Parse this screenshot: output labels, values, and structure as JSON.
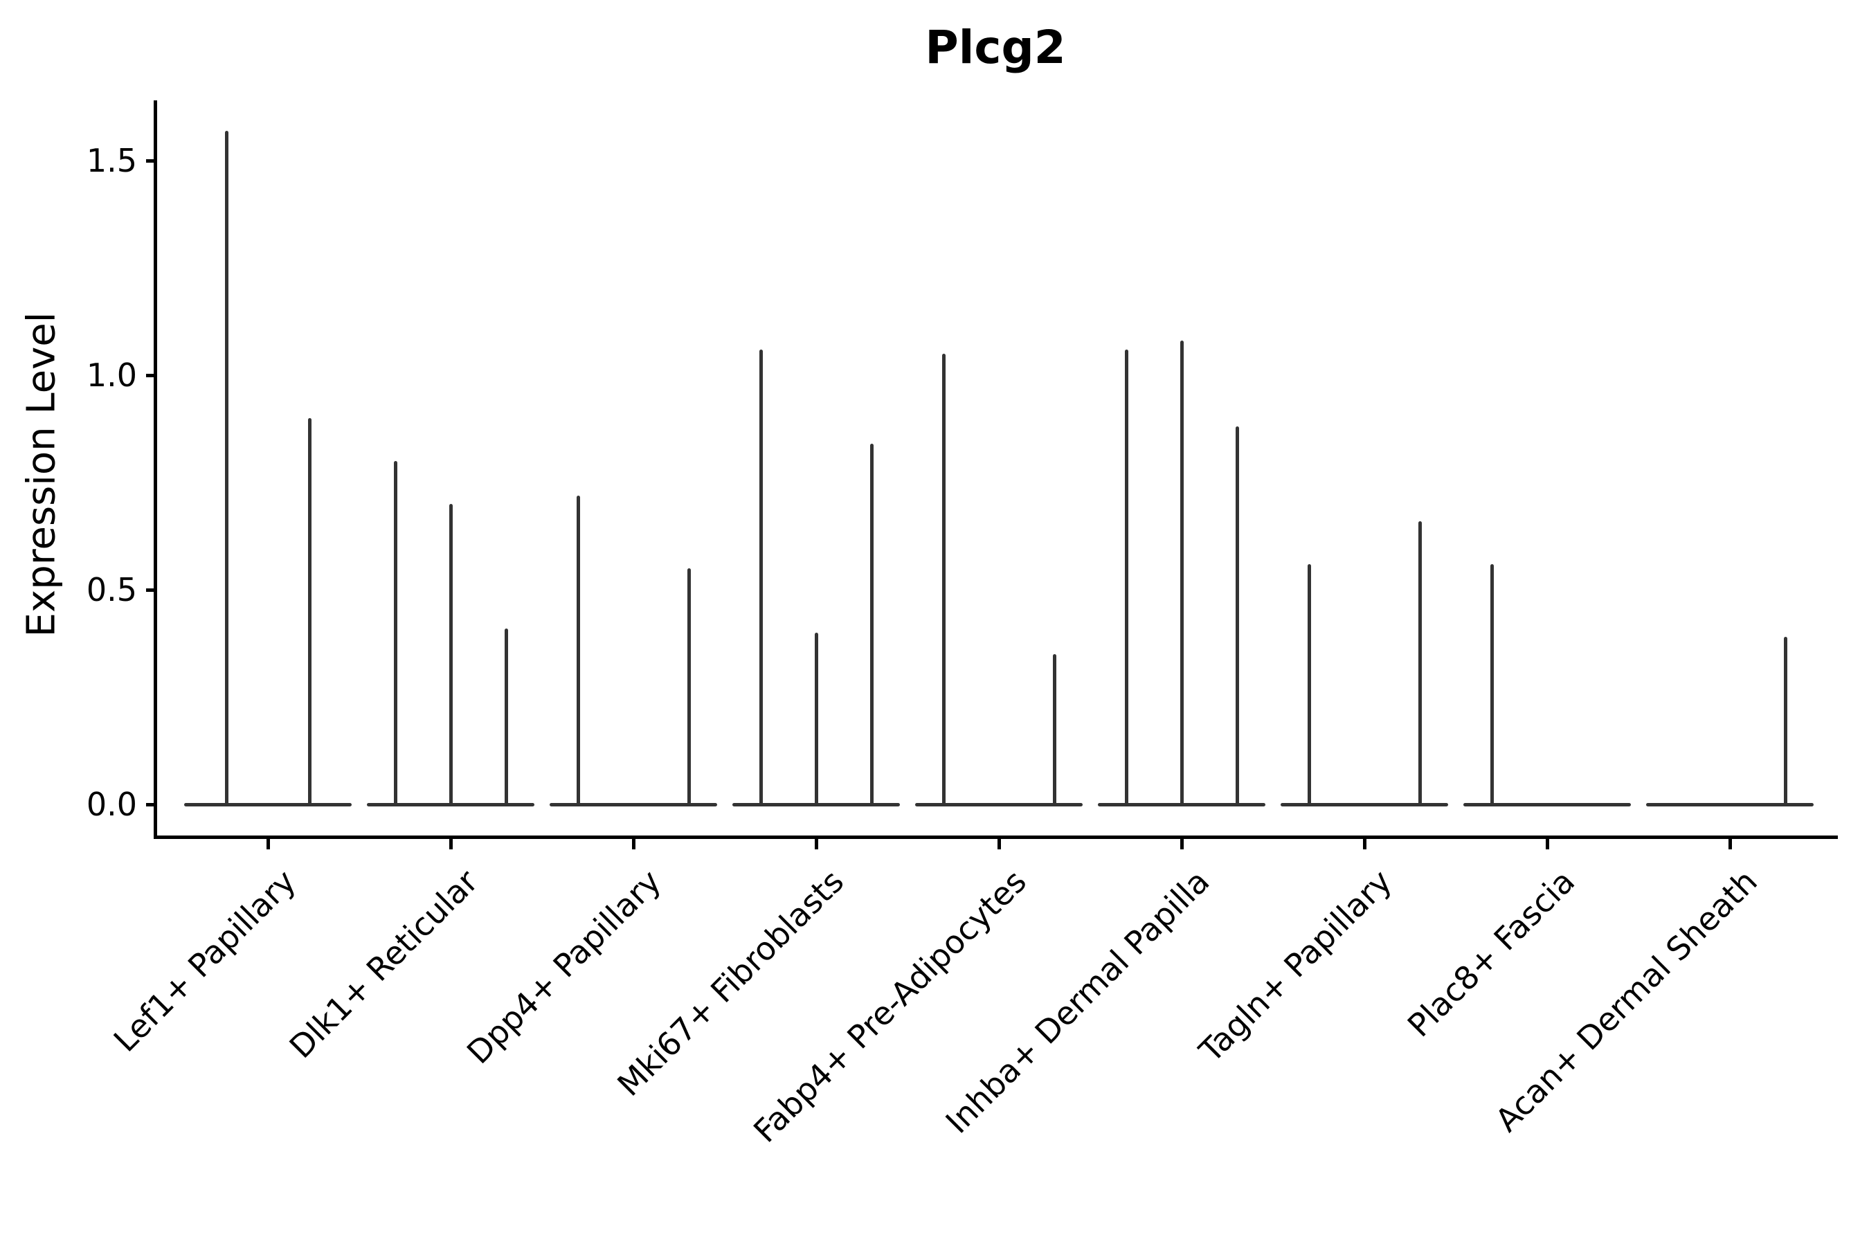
{
  "chart_data": {
    "type": "violin",
    "title": "Plcg2",
    "ylabel": "Expression Level",
    "xlabel": "",
    "grid": false,
    "legend": false,
    "yticks": [
      0.0,
      0.5,
      1.0,
      1.5
    ],
    "ytick_labels": [
      "0.0",
      "0.5",
      "1.0",
      "1.5"
    ],
    "ylim": [
      -0.08,
      1.65
    ],
    "description": "Single-cell expression violin plot; violins are collapsed to a baseline at 0 with thin spikes reaching the maximum expression of rare positive cells. Each category holds up to 3 sub-violins (split groups); flat entries have peak 0.",
    "categories": [
      "Lef1+ Papillary",
      "Dlk1+ Reticular",
      "Dpp4+ Papillary",
      "Mki67+ Fibroblasts",
      "Fabp4+ Pre-Adipocytes",
      "Inhba+ Dermal Papilla",
      "Tagln+ Papillary",
      "Plac8+ Fascia",
      "Acan+ Dermal Sheath"
    ],
    "groups": [
      {
        "category": "Lef1+ Papillary",
        "n_violins": 2,
        "peaks": [
          1.57,
          0.9
        ]
      },
      {
        "category": "Dlk1+ Reticular",
        "n_violins": 3,
        "peaks": [
          0.8,
          0.7,
          0.41
        ]
      },
      {
        "category": "Dpp4+ Papillary",
        "n_violins": 3,
        "peaks": [
          0.72,
          0,
          0.55
        ]
      },
      {
        "category": "Mki67+ Fibroblasts",
        "n_violins": 3,
        "peaks": [
          1.06,
          0.4,
          0.84
        ]
      },
      {
        "category": "Fabp4+ Pre-Adipocytes",
        "n_violins": 3,
        "peaks": [
          1.05,
          0,
          0.35
        ]
      },
      {
        "category": "Inhba+ Dermal Papilla",
        "n_violins": 3,
        "peaks": [
          1.06,
          1.08,
          0.88
        ]
      },
      {
        "category": "Tagln+ Papillary",
        "n_violins": 3,
        "peaks": [
          0.56,
          0,
          0.66
        ]
      },
      {
        "category": "Plac8+ Fascia",
        "n_violins": 3,
        "peaks": [
          0.56,
          0,
          0
        ]
      },
      {
        "category": "Acan+ Dermal Sheath",
        "n_violins": 3,
        "peaks": [
          0,
          0,
          0.39
        ]
      }
    ],
    "colors": {
      "violin_stroke": "#333333",
      "axis": "#000000",
      "text": "#000000",
      "background": "#ffffff"
    }
  }
}
